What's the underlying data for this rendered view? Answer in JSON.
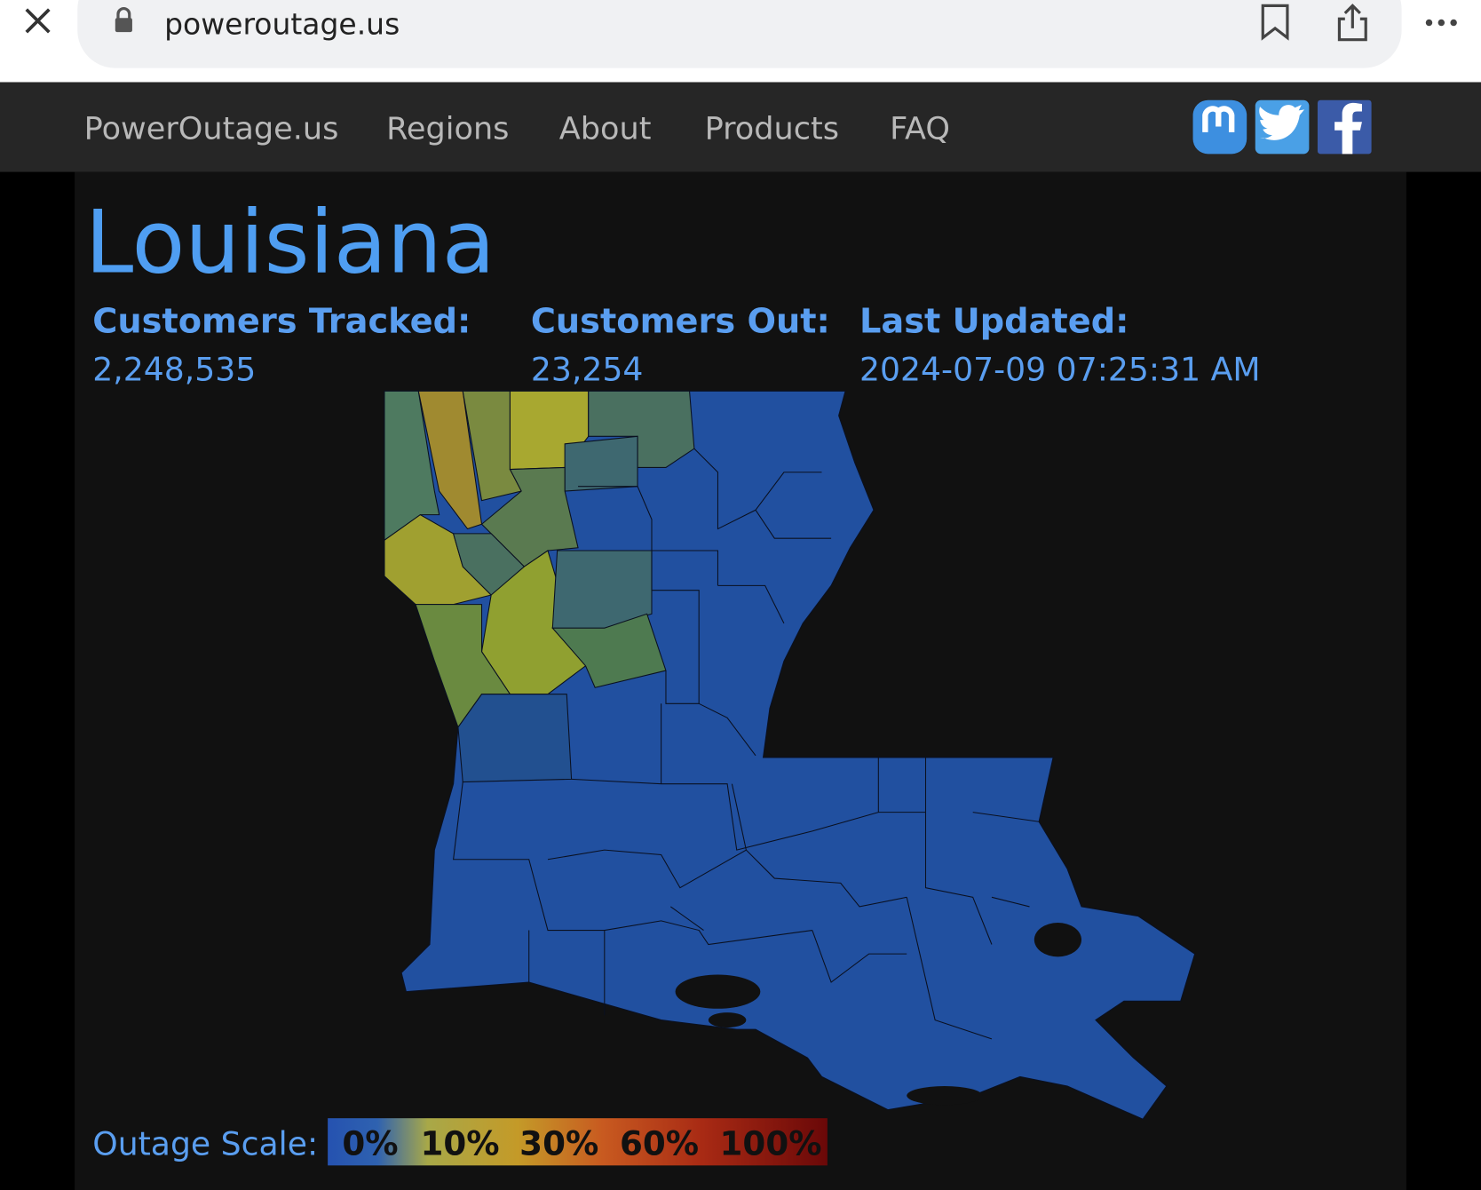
{
  "browser": {
    "url": "poweroutage.us"
  },
  "nav": {
    "brand": "PowerOutage.us",
    "links": [
      "Regions",
      "About",
      "Products",
      "FAQ"
    ]
  },
  "page": {
    "title": "Louisiana",
    "stats": [
      {
        "label": "Customers Tracked:",
        "value": "2,248,535"
      },
      {
        "label": "Customers Out:",
        "value": "23,254"
      },
      {
        "label": "Last Updated:",
        "value": "2024-07-09 07:25:31 AM"
      }
    ]
  },
  "legend": {
    "title": "Outage Scale:",
    "labels": [
      "0%",
      "10%",
      "30%",
      "60%",
      "100%"
    ]
  }
}
